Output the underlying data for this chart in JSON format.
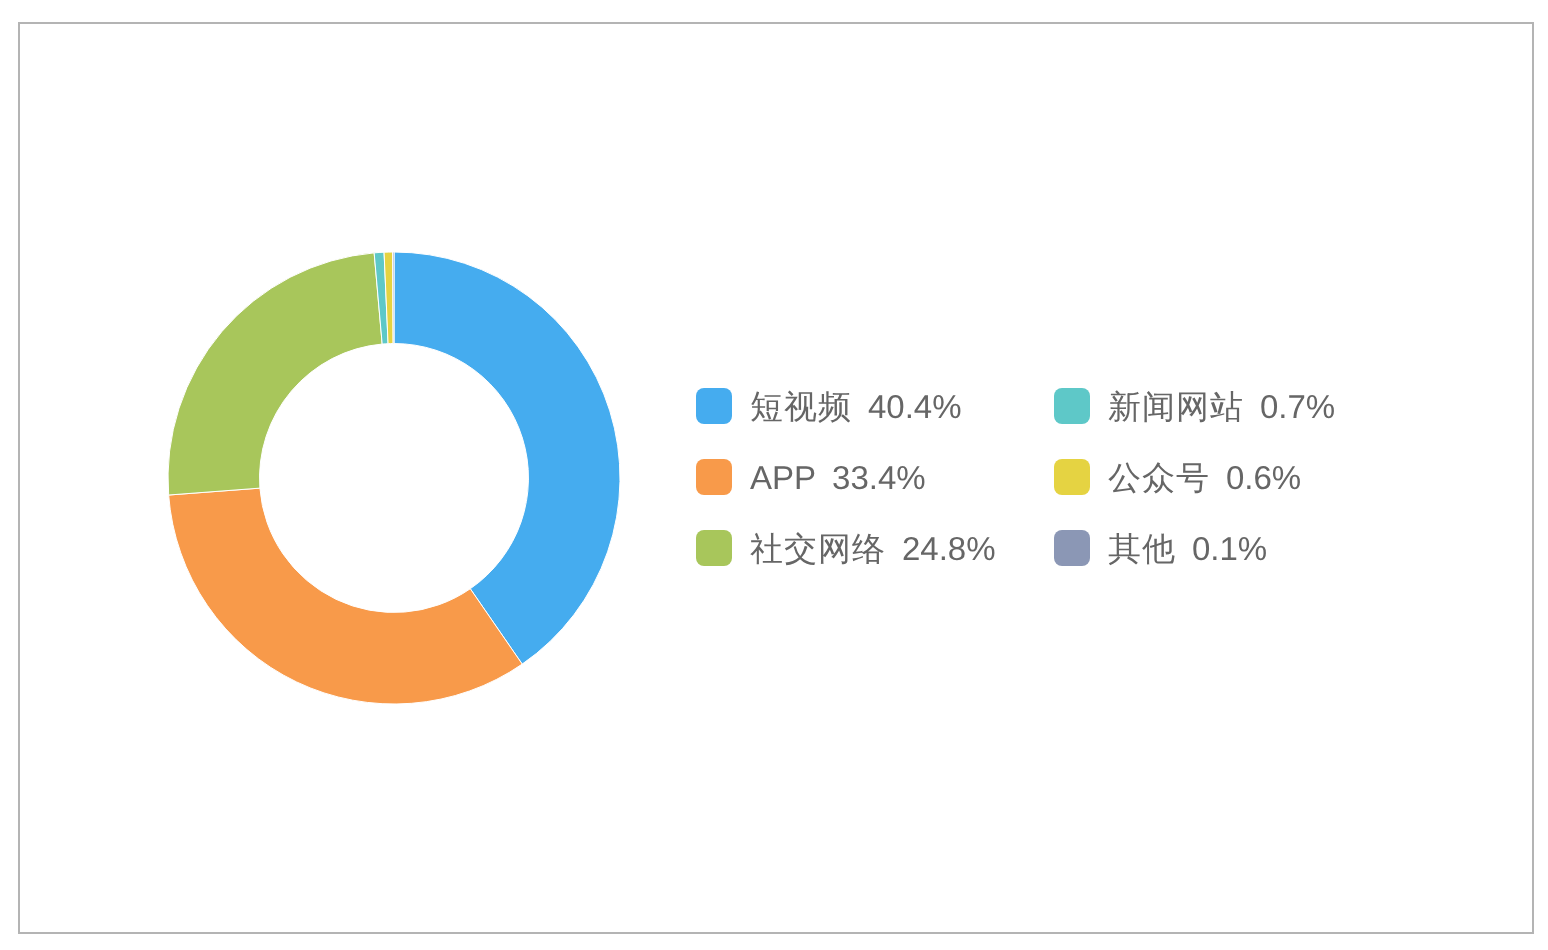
{
  "chart_data": {
    "type": "donut",
    "categories": [
      "短视频",
      "APP",
      "社交网络",
      "新闻网站",
      "公众号",
      "其他"
    ],
    "values": [
      40.4,
      33.4,
      24.8,
      0.7,
      0.6,
      0.1
    ],
    "value_labels": [
      "40.4%",
      "33.4%",
      "24.8%",
      "0.7%",
      "0.6%",
      "0.1%"
    ],
    "colors": [
      "#45acef",
      "#f89a4a",
      "#a8c65b",
      "#5ec8c8",
      "#e5d342",
      "#8b97b5"
    ],
    "legend": "right"
  }
}
